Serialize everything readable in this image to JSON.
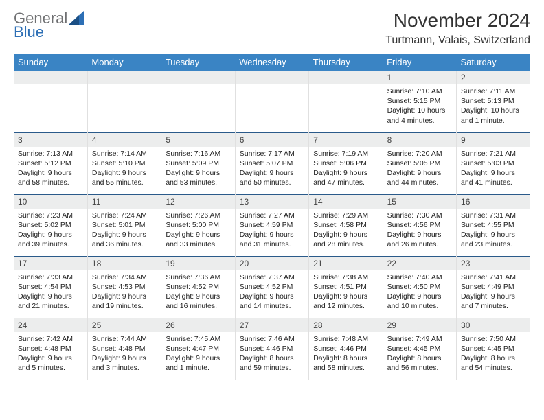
{
  "brand": {
    "part1": "General",
    "part2": "Blue"
  },
  "title": "November 2024",
  "location": "Turtmann, Valais, Switzerland",
  "colors": {
    "header_bg": "#3a84c4",
    "header_text": "#ffffff",
    "daynum_bg": "#eceded",
    "week_divider": "#2a5a8a",
    "cell_border": "#e0e0e0",
    "logo_gray": "#6f7072",
    "logo_blue": "#2d6fb5",
    "text": "#222222",
    "page_bg": "#ffffff"
  },
  "weekdays": [
    "Sunday",
    "Monday",
    "Tuesday",
    "Wednesday",
    "Thursday",
    "Friday",
    "Saturday"
  ],
  "weeks": [
    [
      null,
      null,
      null,
      null,
      null,
      {
        "day": "1",
        "sunrise": "Sunrise: 7:10 AM",
        "sunset": "Sunset: 5:15 PM",
        "daylight": "Daylight: 10 hours and 4 minutes."
      },
      {
        "day": "2",
        "sunrise": "Sunrise: 7:11 AM",
        "sunset": "Sunset: 5:13 PM",
        "daylight": "Daylight: 10 hours and 1 minute."
      }
    ],
    [
      {
        "day": "3",
        "sunrise": "Sunrise: 7:13 AM",
        "sunset": "Sunset: 5:12 PM",
        "daylight": "Daylight: 9 hours and 58 minutes."
      },
      {
        "day": "4",
        "sunrise": "Sunrise: 7:14 AM",
        "sunset": "Sunset: 5:10 PM",
        "daylight": "Daylight: 9 hours and 55 minutes."
      },
      {
        "day": "5",
        "sunrise": "Sunrise: 7:16 AM",
        "sunset": "Sunset: 5:09 PM",
        "daylight": "Daylight: 9 hours and 53 minutes."
      },
      {
        "day": "6",
        "sunrise": "Sunrise: 7:17 AM",
        "sunset": "Sunset: 5:07 PM",
        "daylight": "Daylight: 9 hours and 50 minutes."
      },
      {
        "day": "7",
        "sunrise": "Sunrise: 7:19 AM",
        "sunset": "Sunset: 5:06 PM",
        "daylight": "Daylight: 9 hours and 47 minutes."
      },
      {
        "day": "8",
        "sunrise": "Sunrise: 7:20 AM",
        "sunset": "Sunset: 5:05 PM",
        "daylight": "Daylight: 9 hours and 44 minutes."
      },
      {
        "day": "9",
        "sunrise": "Sunrise: 7:21 AM",
        "sunset": "Sunset: 5:03 PM",
        "daylight": "Daylight: 9 hours and 41 minutes."
      }
    ],
    [
      {
        "day": "10",
        "sunrise": "Sunrise: 7:23 AM",
        "sunset": "Sunset: 5:02 PM",
        "daylight": "Daylight: 9 hours and 39 minutes."
      },
      {
        "day": "11",
        "sunrise": "Sunrise: 7:24 AM",
        "sunset": "Sunset: 5:01 PM",
        "daylight": "Daylight: 9 hours and 36 minutes."
      },
      {
        "day": "12",
        "sunrise": "Sunrise: 7:26 AM",
        "sunset": "Sunset: 5:00 PM",
        "daylight": "Daylight: 9 hours and 33 minutes."
      },
      {
        "day": "13",
        "sunrise": "Sunrise: 7:27 AM",
        "sunset": "Sunset: 4:59 PM",
        "daylight": "Daylight: 9 hours and 31 minutes."
      },
      {
        "day": "14",
        "sunrise": "Sunrise: 7:29 AM",
        "sunset": "Sunset: 4:58 PM",
        "daylight": "Daylight: 9 hours and 28 minutes."
      },
      {
        "day": "15",
        "sunrise": "Sunrise: 7:30 AM",
        "sunset": "Sunset: 4:56 PM",
        "daylight": "Daylight: 9 hours and 26 minutes."
      },
      {
        "day": "16",
        "sunrise": "Sunrise: 7:31 AM",
        "sunset": "Sunset: 4:55 PM",
        "daylight": "Daylight: 9 hours and 23 minutes."
      }
    ],
    [
      {
        "day": "17",
        "sunrise": "Sunrise: 7:33 AM",
        "sunset": "Sunset: 4:54 PM",
        "daylight": "Daylight: 9 hours and 21 minutes."
      },
      {
        "day": "18",
        "sunrise": "Sunrise: 7:34 AM",
        "sunset": "Sunset: 4:53 PM",
        "daylight": "Daylight: 9 hours and 19 minutes."
      },
      {
        "day": "19",
        "sunrise": "Sunrise: 7:36 AM",
        "sunset": "Sunset: 4:52 PM",
        "daylight": "Daylight: 9 hours and 16 minutes."
      },
      {
        "day": "20",
        "sunrise": "Sunrise: 7:37 AM",
        "sunset": "Sunset: 4:52 PM",
        "daylight": "Daylight: 9 hours and 14 minutes."
      },
      {
        "day": "21",
        "sunrise": "Sunrise: 7:38 AM",
        "sunset": "Sunset: 4:51 PM",
        "daylight": "Daylight: 9 hours and 12 minutes."
      },
      {
        "day": "22",
        "sunrise": "Sunrise: 7:40 AM",
        "sunset": "Sunset: 4:50 PM",
        "daylight": "Daylight: 9 hours and 10 minutes."
      },
      {
        "day": "23",
        "sunrise": "Sunrise: 7:41 AM",
        "sunset": "Sunset: 4:49 PM",
        "daylight": "Daylight: 9 hours and 7 minutes."
      }
    ],
    [
      {
        "day": "24",
        "sunrise": "Sunrise: 7:42 AM",
        "sunset": "Sunset: 4:48 PM",
        "daylight": "Daylight: 9 hours and 5 minutes."
      },
      {
        "day": "25",
        "sunrise": "Sunrise: 7:44 AM",
        "sunset": "Sunset: 4:48 PM",
        "daylight": "Daylight: 9 hours and 3 minutes."
      },
      {
        "day": "26",
        "sunrise": "Sunrise: 7:45 AM",
        "sunset": "Sunset: 4:47 PM",
        "daylight": "Daylight: 9 hours and 1 minute."
      },
      {
        "day": "27",
        "sunrise": "Sunrise: 7:46 AM",
        "sunset": "Sunset: 4:46 PM",
        "daylight": "Daylight: 8 hours and 59 minutes."
      },
      {
        "day": "28",
        "sunrise": "Sunrise: 7:48 AM",
        "sunset": "Sunset: 4:46 PM",
        "daylight": "Daylight: 8 hours and 58 minutes."
      },
      {
        "day": "29",
        "sunrise": "Sunrise: 7:49 AM",
        "sunset": "Sunset: 4:45 PM",
        "daylight": "Daylight: 8 hours and 56 minutes."
      },
      {
        "day": "30",
        "sunrise": "Sunrise: 7:50 AM",
        "sunset": "Sunset: 4:45 PM",
        "daylight": "Daylight: 8 hours and 54 minutes."
      }
    ]
  ]
}
